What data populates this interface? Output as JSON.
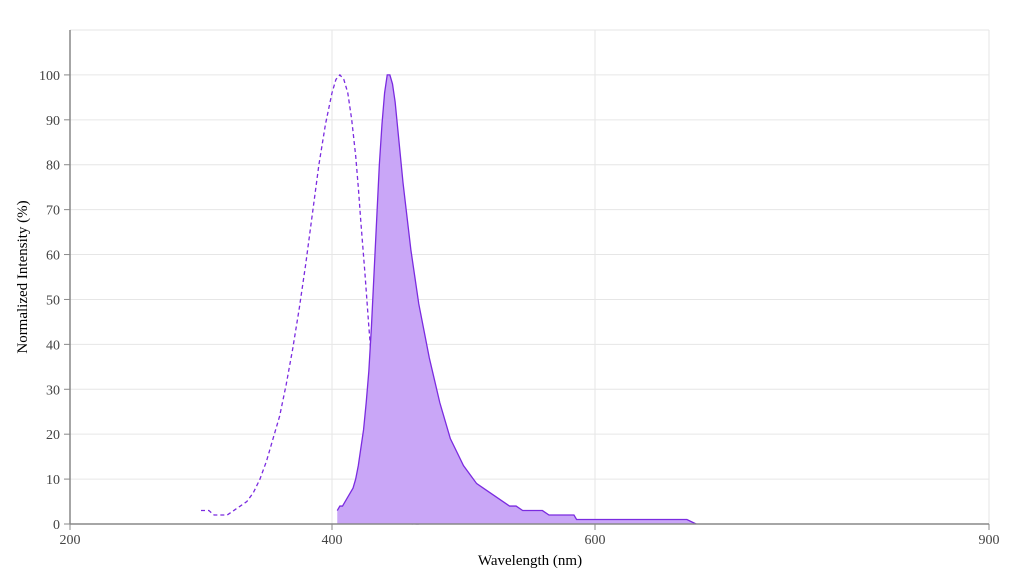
{
  "chart_data": {
    "type": "area",
    "xlabel": "Wavelength (nm)",
    "ylabel": "Normalized Intensity (%)",
    "xlim": [
      200,
      900
    ],
    "ylim": [
      0,
      110
    ],
    "x_ticks": [
      200,
      400,
      600,
      900
    ],
    "y_ticks": [
      0,
      10,
      20,
      30,
      40,
      50,
      60,
      70,
      80,
      90,
      100
    ],
    "grid": true,
    "legend": "none",
    "colors": {
      "series": "#7b2be0",
      "fill": "#c9a6f7"
    },
    "series": [
      {
        "style": "dashed",
        "filled": false,
        "x": [
          300,
          306,
          310,
          315,
          320,
          325,
          330,
          335,
          340,
          345,
          350,
          355,
          360,
          365,
          370,
          375,
          380,
          385,
          390,
          395,
          400,
          403,
          406,
          409,
          412,
          415,
          418,
          420,
          422,
          425,
          428,
          431,
          434,
          437,
          440,
          443,
          446,
          449,
          452,
          455,
          458,
          461,
          464,
          466
        ],
        "y": [
          3,
          3,
          2,
          2,
          2,
          3,
          4,
          5,
          7,
          10,
          14,
          19,
          24,
          31,
          39,
          48,
          58,
          69,
          80,
          89,
          96,
          99,
          100,
          99,
          96,
          90,
          82,
          75,
          67,
          56,
          44,
          33,
          23,
          15,
          10,
          6,
          4,
          3,
          2,
          1,
          1,
          0,
          0,
          0
        ]
      },
      {
        "style": "solid",
        "filled": true,
        "x": [
          404,
          406,
          408,
          410,
          412,
          414,
          416,
          418,
          420,
          422,
          424,
          426,
          428,
          430,
          432,
          434,
          436,
          438,
          440,
          442,
          444,
          446,
          448,
          450,
          452,
          454,
          456,
          458,
          460,
          463,
          466,
          470,
          474,
          478,
          482,
          486,
          490,
          495,
          500,
          505,
          510,
          515,
          520,
          525,
          530,
          535,
          540,
          545,
          550,
          555,
          560,
          565,
          570,
          576,
          580,
          582,
          584,
          586,
          590,
          595,
          600,
          608,
          612,
          620,
          630,
          640,
          645,
          650,
          660,
          670,
          677
        ],
        "y": [
          3,
          4,
          4,
          5,
          6,
          7,
          8,
          10,
          13,
          17,
          21,
          27,
          34,
          44,
          56,
          68,
          80,
          89,
          96,
          100,
          100,
          98,
          94,
          88,
          82,
          76,
          71,
          66,
          61,
          55,
          49,
          43,
          37,
          32,
          27,
          23,
          19,
          16,
          13,
          11,
          9,
          8,
          7,
          6,
          5,
          4,
          4,
          3,
          3,
          3,
          3,
          2,
          2,
          2,
          2,
          2,
          2,
          1,
          1,
          1,
          1,
          1,
          1,
          1,
          1,
          1,
          1,
          1,
          1,
          1,
          0
        ]
      }
    ]
  }
}
